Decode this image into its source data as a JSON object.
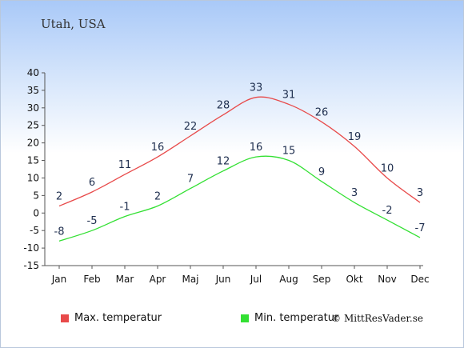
{
  "title": "Utah, USA",
  "credit": "© MittResVader.se",
  "chart_data": {
    "type": "line",
    "categories": [
      "Jan",
      "Feb",
      "Mar",
      "Apr",
      "Maj",
      "Jun",
      "Jul",
      "Aug",
      "Sep",
      "Okt",
      "Nov",
      "Dec"
    ],
    "ylim": [
      -15,
      40
    ],
    "yticks": [
      -15,
      -10,
      -5,
      0,
      5,
      10,
      15,
      20,
      25,
      30,
      35,
      40
    ],
    "series": [
      {
        "name": "Max. temperatur",
        "color": "#e84a4a",
        "values": [
          2,
          6,
          11,
          16,
          22,
          28,
          33,
          31,
          26,
          19,
          10,
          3
        ]
      },
      {
        "name": "Min. temperatur",
        "color": "#33e033",
        "values": [
          -8,
          -5,
          -1,
          2,
          7,
          12,
          16,
          15,
          9,
          3,
          -2,
          -7
        ]
      }
    ],
    "legend_position": "bottom",
    "grid": false
  }
}
